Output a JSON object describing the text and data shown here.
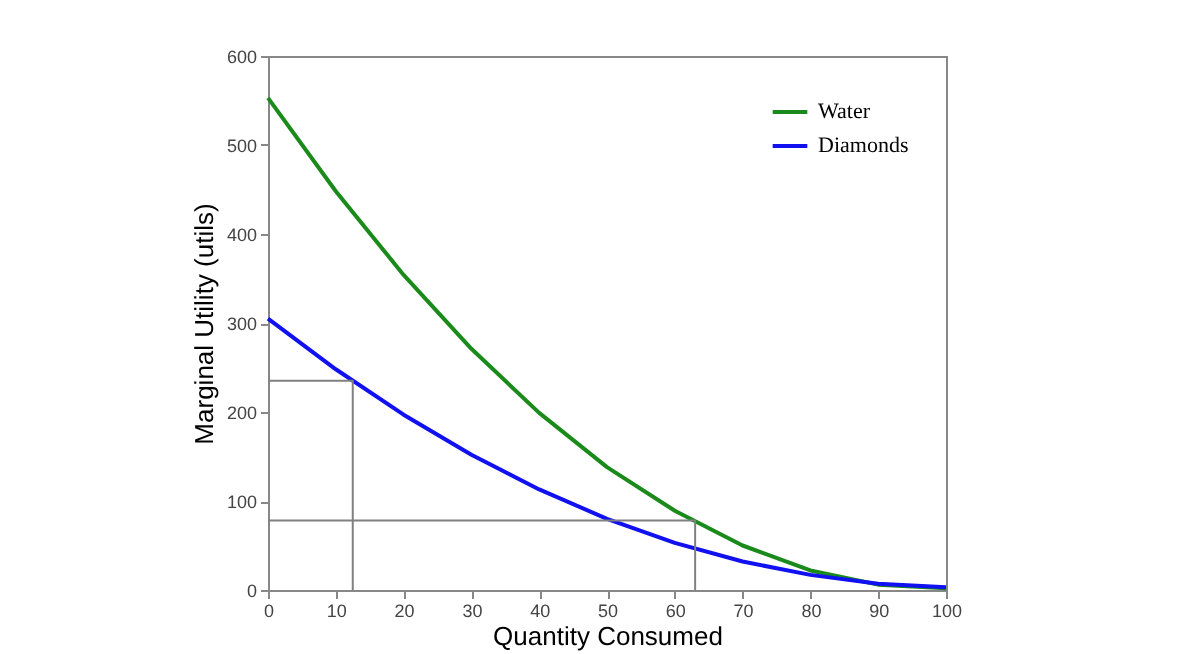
{
  "chart_data": {
    "type": "line",
    "xlabel": "Quantity Consumed",
    "ylabel": "Marginal Utility (utils)",
    "x": [
      0,
      10,
      20,
      30,
      40,
      50,
      60,
      70,
      80,
      90,
      100
    ],
    "series": [
      {
        "name": "Water",
        "color": "#1a8a1a",
        "values": [
          553,
          448,
          354,
          271,
          199,
          138,
          89,
          50,
          22,
          6,
          2
        ]
      },
      {
        "name": "Diamonds",
        "color": "#1010f0",
        "values": [
          305,
          248,
          197,
          152,
          113,
          80,
          53,
          32,
          17,
          7,
          3
        ]
      },
      {
        "type": "line",
        "color": "#808080",
        "x": [
          0,
          12.5,
          12.5
        ],
        "values": [
          235,
          235,
          0
        ]
      },
      {
        "type": "line",
        "color": "#808080",
        "x": [
          0,
          63,
          63
        ],
        "values": [
          78,
          78,
          0
        ]
      }
    ],
    "xlim": [
      0,
      100
    ],
    "ylim": [
      0,
      600
    ],
    "xticks": [
      0,
      10,
      20,
      30,
      40,
      50,
      60,
      70,
      80,
      90,
      100
    ],
    "yticks": [
      0,
      100,
      200,
      300,
      400,
      500,
      600
    ],
    "grid": false,
    "legend": "top right",
    "marker": "none",
    "line_style": "solid"
  }
}
